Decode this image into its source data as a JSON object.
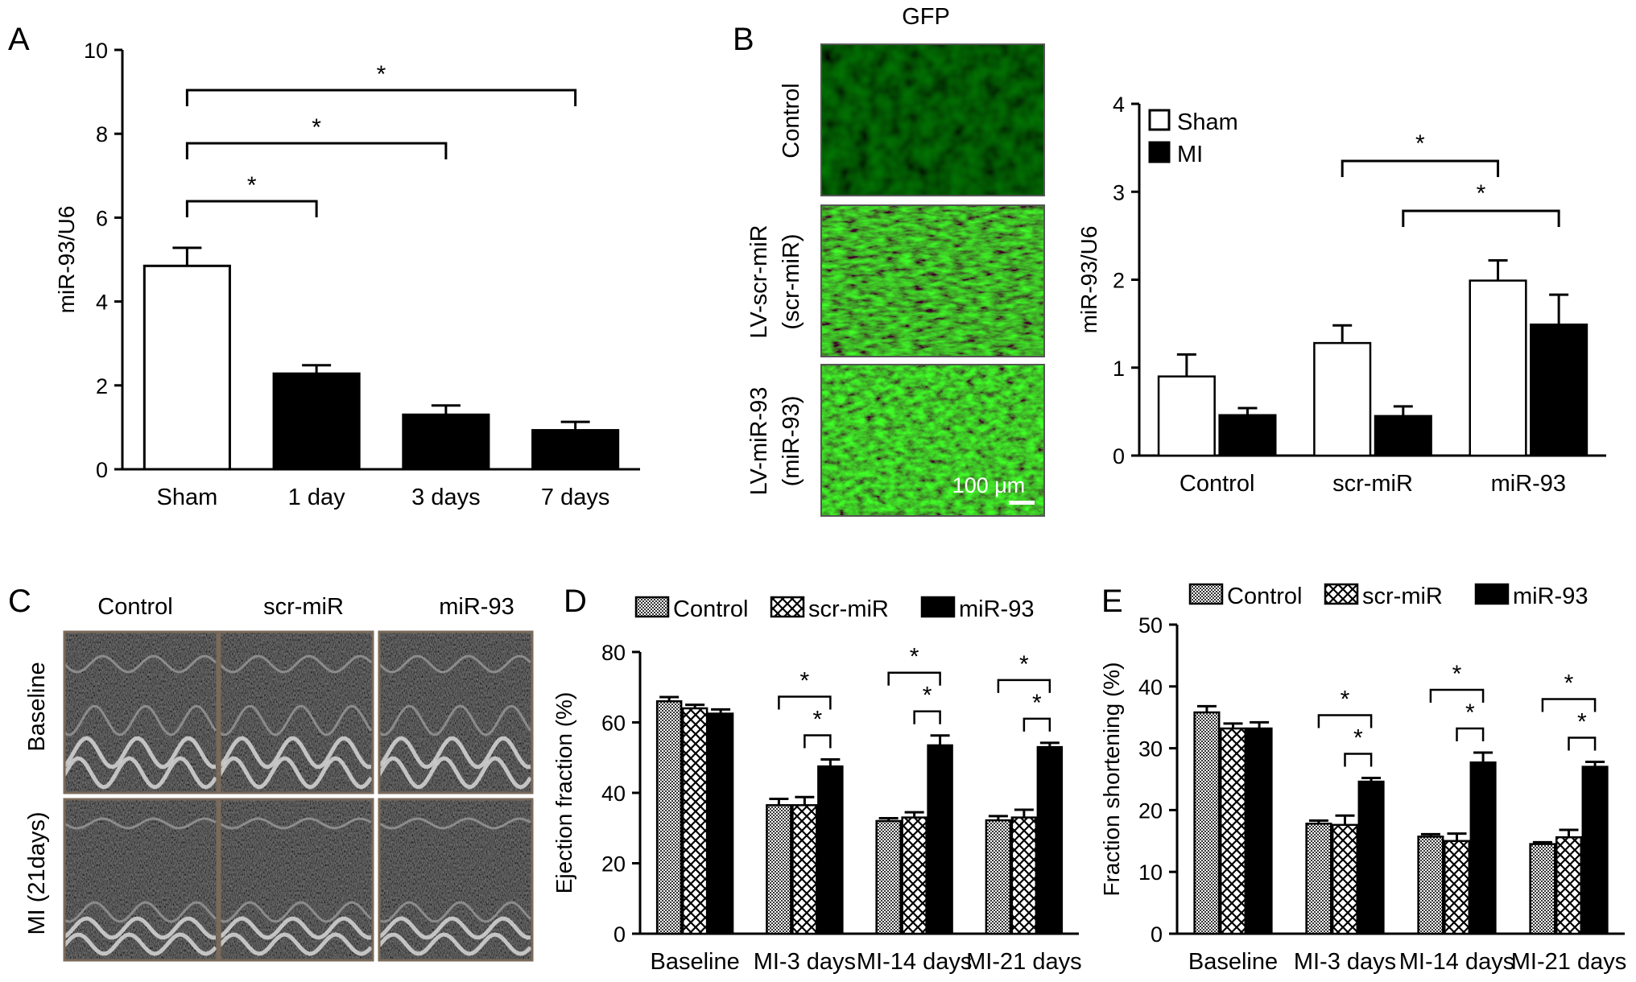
{
  "panels": {
    "A": "A",
    "B": "B",
    "C": "C",
    "D": "D",
    "E": "E"
  },
  "panelB_images": {
    "header": "GFP",
    "rows": [
      "Control",
      "LV-scr-miR",
      "(scr-miR)",
      "LV-miR-93",
      "(miR-93)"
    ],
    "scalebar": "100 μm"
  },
  "panelC_images": {
    "cols": [
      "Control",
      "scr-miR",
      "miR-93"
    ],
    "rows": [
      "Baseline",
      "MI (21days)"
    ]
  },
  "chart_data": [
    {
      "id": "A",
      "type": "bar",
      "categories": [
        "Sham",
        "1 day",
        "3 days",
        "7 days"
      ],
      "values": [
        4.85,
        2.28,
        1.3,
        0.93
      ],
      "errors": [
        0.43,
        0.2,
        0.22,
        0.2
      ],
      "fills": [
        "#ffffff",
        "#000000",
        "#000000",
        "#000000"
      ],
      "ylabel": "miR-93/U6",
      "ylim": [
        0,
        10
      ],
      "yticks": [
        0,
        2,
        4,
        6,
        8,
        10
      ],
      "significance": [
        {
          "from": 0,
          "to": 1,
          "label": "*"
        },
        {
          "from": 0,
          "to": 2,
          "label": "*"
        },
        {
          "from": 0,
          "to": 3,
          "label": "*"
        }
      ]
    },
    {
      "id": "B",
      "type": "bar",
      "categories": [
        "Control",
        "scr-miR",
        "miR-93"
      ],
      "series": [
        {
          "name": "Sham",
          "values": [
            0.9,
            1.28,
            1.99
          ],
          "errors": [
            0.25,
            0.2,
            0.23
          ],
          "color": "#ffffff"
        },
        {
          "name": "MI",
          "values": [
            0.46,
            0.45,
            1.49
          ],
          "errors": [
            0.08,
            0.11,
            0.34
          ],
          "color": "#000000"
        }
      ],
      "ylabel": "miR-93/U6",
      "ylim": [
        0,
        4
      ],
      "yticks": [
        0,
        1,
        2,
        3,
        4
      ],
      "legend": "top-left",
      "significance": [
        {
          "from": [
            1,
            0
          ],
          "to": [
            2,
            0
          ],
          "label": "*"
        },
        {
          "from": [
            1,
            1
          ],
          "to": [
            2,
            1
          ],
          "label": "*"
        }
      ]
    },
    {
      "id": "D",
      "type": "bar",
      "categories": [
        "Baseline",
        "MI-3 days",
        "MI-14 days",
        "MI-21 days"
      ],
      "series": [
        {
          "name": "Control",
          "values": [
            66,
            36.5,
            32,
            32.2
          ],
          "errors": [
            1.2,
            1.8,
            0.8,
            1.2
          ],
          "pattern": "dots"
        },
        {
          "name": "scr-miR",
          "values": [
            64,
            36.5,
            33,
            33
          ],
          "errors": [
            1.0,
            2.3,
            1.5,
            2.2
          ],
          "pattern": "cross"
        },
        {
          "name": "miR-93",
          "values": [
            62.5,
            47.5,
            53.5,
            53
          ],
          "errors": [
            1.2,
            2.0,
            2.8,
            1.2
          ],
          "pattern": "solid"
        }
      ],
      "ylabel": "Ejection fraction (%)",
      "ylim": [
        0,
        80
      ],
      "yticks": [
        0,
        20,
        40,
        60,
        80
      ],
      "legend": "top",
      "significance": [
        {
          "group": 1,
          "from": 0,
          "to": 2,
          "label": "*"
        },
        {
          "group": 1,
          "from": 1,
          "to": 2,
          "label": "*"
        },
        {
          "group": 2,
          "from": 0,
          "to": 2,
          "label": "*"
        },
        {
          "group": 2,
          "from": 1,
          "to": 2,
          "label": "*"
        },
        {
          "group": 3,
          "from": 0,
          "to": 2,
          "label": "*"
        },
        {
          "group": 3,
          "from": 1,
          "to": 2,
          "label": "*"
        }
      ]
    },
    {
      "id": "E",
      "type": "bar",
      "categories": [
        "Baseline",
        "MI-3 days",
        "MI-14 days",
        "MI-21 days"
      ],
      "series": [
        {
          "name": "Control",
          "values": [
            35.8,
            17.8,
            15.7,
            14.5
          ],
          "errors": [
            1.0,
            0.5,
            0.4,
            0.3
          ],
          "pattern": "dots"
        },
        {
          "name": "scr-miR",
          "values": [
            33.2,
            17.6,
            15,
            15.6
          ],
          "errors": [
            0.8,
            1.5,
            1.2,
            1.2
          ],
          "pattern": "cross"
        },
        {
          "name": "miR-93",
          "values": [
            33.2,
            24.6,
            27.7,
            27
          ],
          "errors": [
            1.0,
            0.6,
            1.6,
            0.8
          ],
          "pattern": "solid"
        }
      ],
      "ylabel": "Fraction shortening (%)",
      "ylim": [
        0,
        50
      ],
      "yticks": [
        0,
        10,
        20,
        30,
        40,
        50
      ],
      "legend": "top",
      "significance": [
        {
          "group": 1,
          "from": 0,
          "to": 2,
          "label": "*"
        },
        {
          "group": 1,
          "from": 1,
          "to": 2,
          "label": "*"
        },
        {
          "group": 2,
          "from": 0,
          "to": 2,
          "label": "*"
        },
        {
          "group": 2,
          "from": 1,
          "to": 2,
          "label": "*"
        },
        {
          "group": 3,
          "from": 0,
          "to": 2,
          "label": "*"
        },
        {
          "group": 3,
          "from": 1,
          "to": 2,
          "label": "*"
        }
      ]
    }
  ]
}
